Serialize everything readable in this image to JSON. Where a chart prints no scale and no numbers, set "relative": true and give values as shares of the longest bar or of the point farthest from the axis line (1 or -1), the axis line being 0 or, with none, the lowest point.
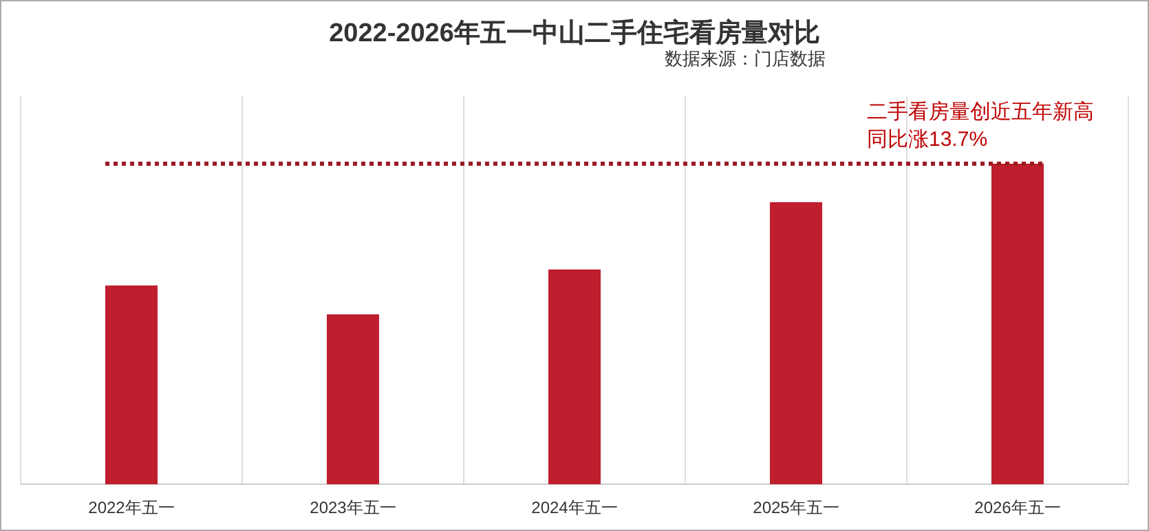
{
  "chart_data": {
    "type": "bar",
    "title": "2022-2026年五一中山二手住宅看房量对比",
    "subtitle": "数据来源：门店数据",
    "categories": [
      "2022年五一",
      "2023年五一",
      "2024年五一",
      "2025年五一",
      "2026年五一"
    ],
    "values": [
      0.62,
      0.53,
      0.67,
      0.88,
      1
    ],
    "color": "#be1e2d",
    "relative": true,
    "grid": "x",
    "ref_lines": [
      {
        "axis": "y",
        "value": 1,
        "color": "#9b1c23",
        "line_style": "dotted",
        "label": "二手看房量创近五年新高同比涨13.7%"
      }
    ]
  }
}
